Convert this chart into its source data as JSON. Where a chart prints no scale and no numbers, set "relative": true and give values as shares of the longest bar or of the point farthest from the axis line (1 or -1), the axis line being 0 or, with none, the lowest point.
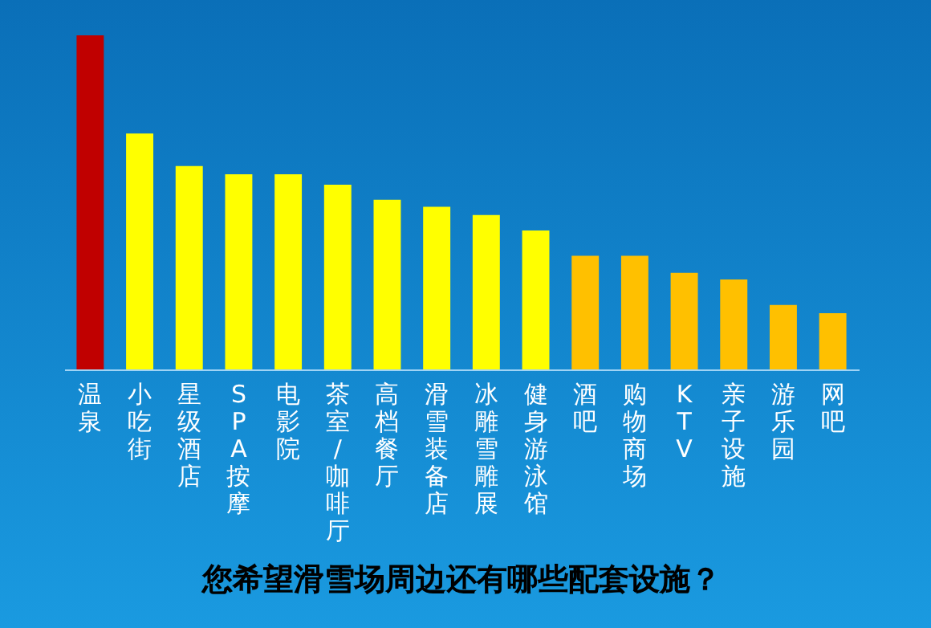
{
  "chart_data": {
    "type": "bar",
    "title": "您希望滑雪场周边还有哪些配套设施？",
    "relative": true,
    "categories": [
      "温泉",
      "小吃街",
      "星级酒店",
      "SPA 按摩",
      "电影院",
      "茶室/咖啡厅",
      "高档餐厅",
      "滑雪装备店",
      "冰雕雪雕展",
      "健身游泳馆",
      "酒吧",
      "购物商场",
      "KTV",
      "亲子设施",
      "游乐园",
      "网吧"
    ],
    "values": [
      1,
      0.706,
      0.609,
      0.584,
      0.584,
      0.553,
      0.508,
      0.487,
      0.462,
      0.416,
      0.34,
      0.34,
      0.289,
      0.269,
      0.193,
      0.168
    ],
    "colors": [
      "#c00000",
      "#ffff00",
      "#ffff00",
      "#ffff00",
      "#ffff00",
      "#ffff00",
      "#ffff00",
      "#ffff00",
      "#ffff00",
      "#ffff00",
      "#ffc000",
      "#ffc000",
      "#ffc000",
      "#ffc000",
      "#ffc000",
      "#ffc000"
    ]
  }
}
